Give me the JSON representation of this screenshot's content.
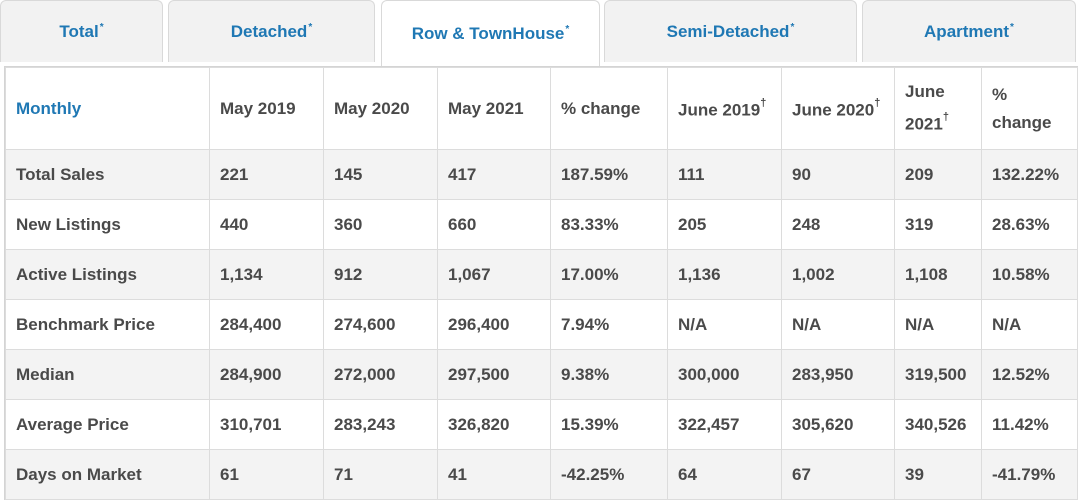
{
  "tabs": [
    {
      "label": "Total",
      "mark": "*"
    },
    {
      "label": "Detached",
      "mark": "*"
    },
    {
      "label": "Row & TownHouse",
      "mark": "*"
    },
    {
      "label": "Semi-Detached",
      "mark": "*"
    },
    {
      "label": "Apartment",
      "mark": "*"
    }
  ],
  "active_tab": "Row & TownHouse",
  "table": {
    "headers": {
      "monthly": "Monthly",
      "may2019": "May 2019",
      "may2020": "May 2020",
      "may2021": "May 2021",
      "pct_change": "% change",
      "june2019": "June 2019",
      "june2019_mark": "†",
      "june2020": "June 2020",
      "june2020_mark": "†",
      "june2021": "June 2021",
      "june2021_mark": "†",
      "pct_change2": "% change"
    },
    "rows": [
      [
        "Total Sales",
        "221",
        "145",
        "417",
        "187.59%",
        "111",
        "90",
        "209",
        "132.22%"
      ],
      [
        "New Listings",
        "440",
        "360",
        "660",
        "83.33%",
        "205",
        "248",
        "319",
        "28.63%"
      ],
      [
        "Active Listings",
        "1,134",
        "912",
        "1,067",
        "17.00%",
        "1,136",
        "1,002",
        "1,108",
        "10.58%"
      ],
      [
        "Benchmark Price",
        "284,400",
        "274,600",
        "296,400",
        "7.94%",
        "N/A",
        "N/A",
        "N/A",
        "N/A"
      ],
      [
        "Median",
        "284,900",
        "272,000",
        "297,500",
        "9.38%",
        "300,000",
        "283,950",
        "319,500",
        "12.52%"
      ],
      [
        "Average Price",
        "310,701",
        "283,243",
        "326,820",
        "15.39%",
        "322,457",
        "305,620",
        "340,526",
        "11.42%"
      ],
      [
        "Days on Market",
        "61",
        "71",
        "41",
        "-42.25%",
        "64",
        "67",
        "39",
        "-41.79%"
      ]
    ]
  },
  "colors": {
    "accent": "#1f78b4",
    "text": "#4a4a4a",
    "row_stripe": "#f3f3f3",
    "tab_bg": "#f2f2f2"
  }
}
